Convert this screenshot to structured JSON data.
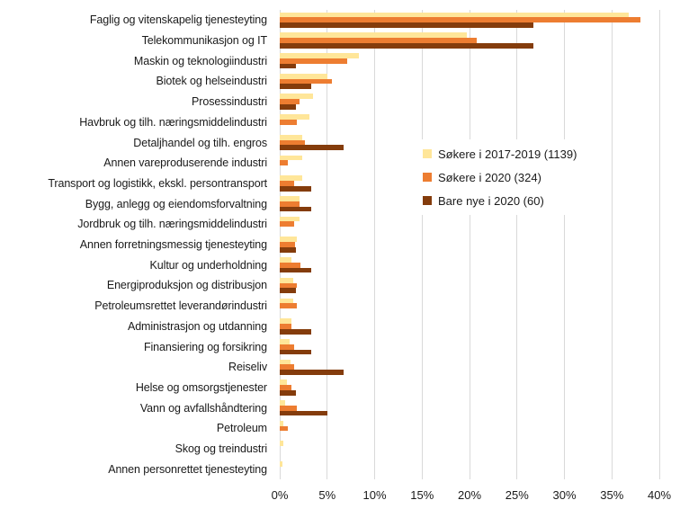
{
  "colors": {
    "background": "#FFFFFF",
    "gridline": "#D9D9D9",
    "text": "#1A1A1A",
    "series1": "#FFE699",
    "series2": "#ED7D31",
    "series3": "#843C0C"
  },
  "chart_data": {
    "type": "bar",
    "orientation": "horizontal",
    "title": "",
    "xlabel": "",
    "ylabel": "",
    "grid": true,
    "legend_position": "center-right-overlay",
    "x_axis": {
      "min": 0,
      "max": 40,
      "unit": "%",
      "tick_step": 5,
      "ticks": [
        "0%",
        "5%",
        "10%",
        "15%",
        "20%",
        "25%",
        "30%",
        "35%",
        "40%"
      ]
    },
    "categories": [
      "Faglig og vitenskapelig tjenesteyting",
      "Telekommunikasjon og IT",
      "Maskin og teknologiindustri",
      "Biotek og helseindustri",
      "Prosessindustri",
      "Havbruk og tilh. næringsmiddelindustri",
      "Detaljhandel og tilh. engros",
      "Annen vareproduserende industri",
      "Transport og logistikk, ekskl. persontransport",
      "Bygg, anlegg og eiendomsforvaltning",
      "Jordbruk og tilh. næringsmiddelindustri",
      "Annen forretningsmessig tjenesteyting",
      "Kultur og underholdning",
      "Energiproduksjon og distribusjon",
      "Petroleumsrettet leverandørindustri",
      "Administrasjon og utdanning",
      "Finansiering og forsikring",
      "Reiseliv",
      "Helse og omsorgstjenester",
      "Vann og avfallshåndtering",
      "Petroleum",
      "Skog og treindustri",
      "Annen personrettet tjenesteyting"
    ],
    "series": [
      {
        "name": "Søkere i 2017-2019 (1139)",
        "color": "#FFE699",
        "values": [
          36.8,
          19.7,
          8.3,
          5.0,
          3.5,
          3.1,
          2.4,
          2.4,
          2.4,
          2.1,
          2.1,
          1.8,
          1.2,
          1.4,
          1.4,
          1.2,
          1.0,
          1.1,
          0.8,
          0.6,
          0.4,
          0.4,
          0.3
        ]
      },
      {
        "name": "Søkere i 2020 (324)",
        "color": "#ED7D31",
        "values": [
          38.0,
          20.8,
          7.1,
          5.5,
          2.1,
          1.8,
          2.7,
          0.9,
          1.5,
          2.1,
          1.5,
          1.6,
          2.2,
          1.8,
          1.8,
          1.2,
          1.5,
          1.5,
          1.2,
          1.8,
          0.9,
          0,
          0
        ]
      },
      {
        "name": "Bare nye i 2020 (60)",
        "color": "#843C0C",
        "values": [
          26.7,
          26.7,
          1.7,
          3.3,
          1.7,
          0,
          6.7,
          0,
          3.3,
          3.3,
          0,
          1.7,
          3.3,
          1.7,
          0,
          3.3,
          3.3,
          6.7,
          1.7,
          5.0,
          0,
          0,
          0
        ]
      }
    ]
  }
}
